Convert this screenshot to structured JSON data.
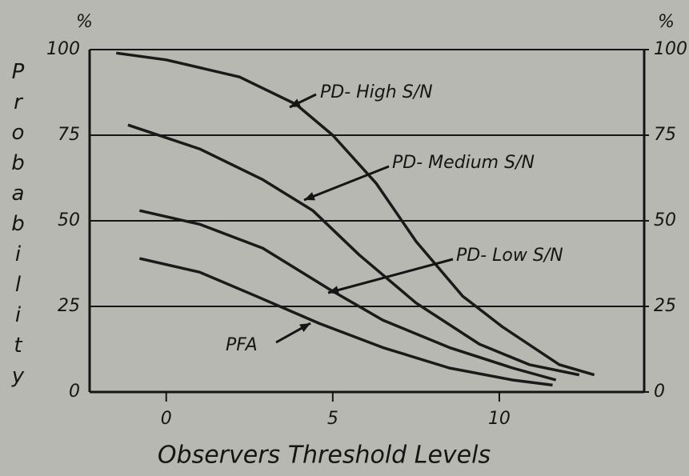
{
  "chart_data": {
    "type": "line",
    "x_label": "Observers Threshold Levels",
    "y_label": "Probability",
    "y_unit": "%",
    "y2_unit": "%",
    "xlim": [
      -2.3,
      14.35
    ],
    "xticks": [
      0,
      5,
      10
    ],
    "ylim": [
      0,
      100
    ],
    "yticks": [
      0,
      25,
      50,
      75,
      100
    ],
    "y2lim": [
      0,
      100
    ],
    "y2ticks": [
      0,
      25,
      50,
      75,
      100
    ],
    "grid": true,
    "series": [
      {
        "name": "PD- High S/N",
        "color": "#1a1a1a",
        "x": [
          -1.5,
          0,
          2.2,
          3.9,
          5,
          6.3,
          7.5,
          8.9,
          10.1,
          11.8,
          12.85
        ],
        "values": [
          99,
          97,
          92,
          84,
          75,
          61,
          44,
          28,
          19,
          8,
          5
        ]
      },
      {
        "name": "PD- Medium S/N",
        "color": "#1a1a1a",
        "x": [
          -1.15,
          1,
          2.9,
          4.4,
          5.8,
          7.5,
          9.4,
          10.9,
          12.4
        ],
        "values": [
          78,
          71,
          62,
          53,
          40,
          26,
          14,
          8,
          5
        ]
      },
      {
        "name": "PD- Low S/N",
        "color": "#1a1a1a",
        "x": [
          -0.8,
          1,
          2.9,
          4.9,
          6.5,
          8.5,
          10.4,
          11.7
        ],
        "values": [
          53,
          49,
          42,
          30,
          21,
          13,
          7,
          3.5
        ]
      },
      {
        "name": "PFA",
        "color": "#1a1a1a",
        "x": [
          -0.8,
          1,
          2.7,
          4.6,
          6.5,
          8.5,
          10.4,
          11.6
        ],
        "values": [
          39,
          35,
          28,
          20,
          13,
          7,
          3.5,
          2
        ]
      }
    ]
  }
}
